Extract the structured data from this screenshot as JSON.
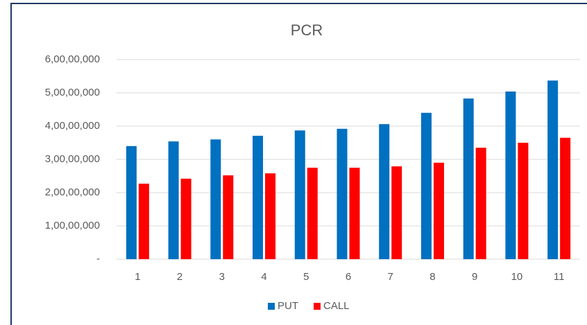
{
  "chart_data": {
    "type": "bar",
    "title": "PCR",
    "categories": [
      "1",
      "2",
      "3",
      "4",
      "5",
      "6",
      "7",
      "8",
      "9",
      "10",
      "11"
    ],
    "series": [
      {
        "name": "PUT",
        "color": "#0070c0",
        "values": [
          34000000,
          35400000,
          36000000,
          37100000,
          38700000,
          39200000,
          40600000,
          44000000,
          48300000,
          50400000,
          53700000
        ]
      },
      {
        "name": "CALL",
        "color": "#ff0000",
        "values": [
          22700000,
          24200000,
          25200000,
          25800000,
          27500000,
          27500000,
          27900000,
          29000000,
          33500000,
          35000000,
          36500000
        ]
      }
    ],
    "ylim": [
      0,
      60000000
    ],
    "yticks": [
      {
        "value": 0,
        "label": "-"
      },
      {
        "value": 10000000,
        "label": "1,00,00,000"
      },
      {
        "value": 20000000,
        "label": "2,00,00,000"
      },
      {
        "value": 30000000,
        "label": "3,00,00,000"
      },
      {
        "value": 40000000,
        "label": "4,00,00,000"
      },
      {
        "value": 50000000,
        "label": "5,00,00,000"
      },
      {
        "value": 60000000,
        "label": "6,00,00,000"
      }
    ],
    "grid": true,
    "legend": "bottom"
  }
}
